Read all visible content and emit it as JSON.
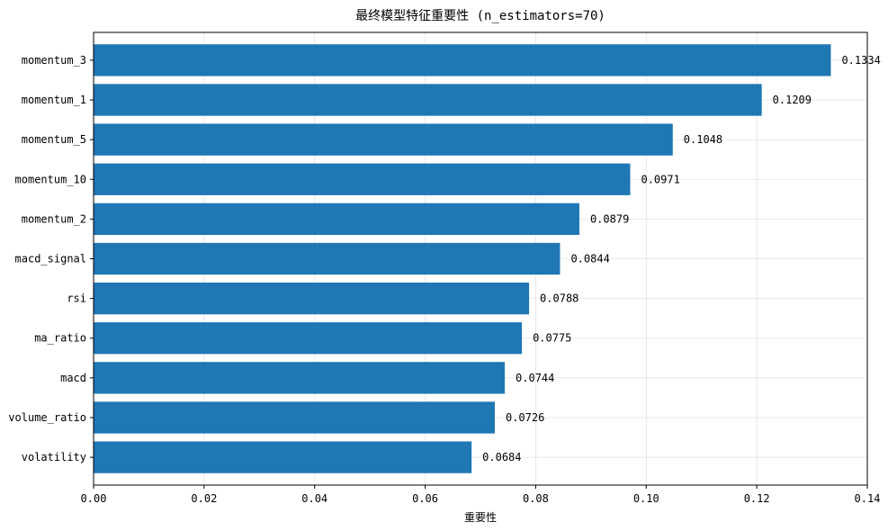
{
  "chart_data": {
    "type": "bar",
    "orientation": "horizontal",
    "title": "最终模型特征重要性 (n_estimators=70)",
    "xlabel": "重要性",
    "ylabel": "",
    "xlim": [
      0,
      0.14
    ],
    "x_ticks": [
      "0.00",
      "0.02",
      "0.04",
      "0.06",
      "0.08",
      "0.10",
      "0.12",
      "0.14"
    ],
    "grid": true,
    "categories": [
      "momentum_3",
      "momentum_1",
      "momentum_5",
      "momentum_10",
      "momentum_2",
      "macd_signal",
      "rsi",
      "ma_ratio",
      "macd",
      "volume_ratio",
      "volatility"
    ],
    "values": [
      0.1334,
      0.1209,
      0.1048,
      0.0971,
      0.0879,
      0.0844,
      0.0788,
      0.0775,
      0.0744,
      0.0726,
      0.0684
    ],
    "value_labels": [
      "0.1334",
      "0.1209",
      "0.1048",
      "0.0971",
      "0.0879",
      "0.0844",
      "0.0788",
      "0.0775",
      "0.0744",
      "0.0726",
      "0.0684"
    ],
    "bar_color": "#1f77b4"
  }
}
